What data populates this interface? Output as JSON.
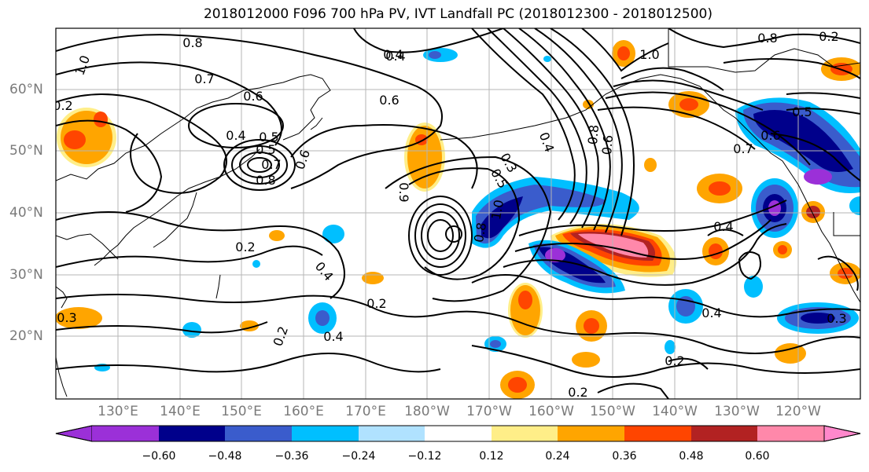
{
  "title": "2018012000 F096 700 hPa PV, IVT Landfall PC (2018012300 - 2018012500)",
  "map": {
    "lat_labels": [
      "60°N",
      "50°N",
      "40°N",
      "30°N",
      "20°N"
    ],
    "lon_labels": [
      "130°E",
      "140°E",
      "150°E",
      "160°E",
      "170°E",
      "180°W",
      "170°W",
      "160°W",
      "150°W",
      "140°W",
      "130°W",
      "120°W"
    ],
    "contour_labels": [
      "0.8",
      "1.0",
      "0.7",
      "0.6",
      "0.4",
      "0.5",
      "0.4",
      "0.5",
      "0.7",
      "0.8",
      "0.6",
      "0.4",
      "0.6",
      "0.9",
      "0.3",
      "0.5",
      "1.0",
      "0.8",
      "0.4",
      "0.8",
      "0.6",
      "1.0",
      "0.8",
      "0.2",
      "0.5",
      "0.6",
      "0.7",
      "0.4",
      "0.2",
      "0.4",
      "0.2",
      "0.2",
      "0.4",
      "0.2",
      "0.4",
      "0.3",
      "0.2",
      "0.3",
      "0.2"
    ]
  },
  "colorbar": {
    "ticks": [
      "−0.60",
      "−0.48",
      "−0.36",
      "−0.24",
      "−0.12",
      "0.12",
      "0.24",
      "0.36",
      "0.48",
      "0.60"
    ],
    "colors": [
      "#9b30d8",
      "#00008b",
      "#3a5ccc",
      "#00bfff",
      "#b0e2ff",
      "#ffffff",
      "#ffee88",
      "#ffa500",
      "#ff4500",
      "#b22222",
      "#ff88aa",
      "#ff88cc"
    ]
  }
}
